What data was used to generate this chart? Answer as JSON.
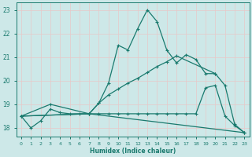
{
  "xlabel": "Humidex (Indice chaleur)",
  "xlim": [
    -0.5,
    23.5
  ],
  "ylim": [
    17.65,
    23.3
  ],
  "yticks": [
    18,
    19,
    20,
    21,
    22,
    23
  ],
  "xticks": [
    0,
    1,
    2,
    3,
    4,
    5,
    6,
    7,
    8,
    9,
    10,
    11,
    12,
    13,
    14,
    15,
    16,
    17,
    18,
    19,
    20,
    21,
    22,
    23
  ],
  "bg_color": "#cde8e8",
  "grid_color": "#e8c8c8",
  "line_color": "#1a7a6e",
  "line1_x": [
    0,
    1,
    2,
    3,
    4,
    5,
    6,
    7,
    8,
    9,
    10,
    11,
    12,
    13,
    14,
    15,
    16,
    17,
    18,
    19,
    20,
    21,
    22,
    23
  ],
  "line1_y": [
    18.5,
    18.0,
    18.3,
    18.8,
    18.65,
    18.6,
    18.6,
    18.6,
    19.05,
    19.9,
    21.5,
    21.3,
    22.2,
    23.0,
    22.5,
    21.3,
    20.75,
    21.1,
    20.9,
    20.3,
    20.3,
    19.8,
    18.15,
    17.8
  ],
  "line2_x": [
    0,
    3,
    7,
    8,
    9,
    10,
    11,
    12,
    13,
    14,
    15,
    16,
    20
  ],
  "line2_y": [
    18.5,
    19.0,
    18.6,
    19.05,
    19.4,
    19.65,
    19.9,
    20.1,
    20.35,
    20.6,
    20.8,
    21.05,
    20.3
  ],
  "line3_x": [
    0,
    7,
    8,
    9,
    10,
    11,
    12,
    13,
    14,
    15,
    16,
    17,
    18,
    19,
    20,
    21,
    22,
    23
  ],
  "line3_y": [
    18.5,
    18.6,
    18.6,
    18.6,
    18.6,
    18.6,
    18.6,
    18.6,
    18.6,
    18.6,
    18.6,
    18.6,
    18.6,
    19.7,
    19.8,
    18.5,
    18.1,
    17.8
  ],
  "line4_x": [
    0,
    7,
    23
  ],
  "line4_y": [
    18.5,
    18.6,
    17.8
  ]
}
